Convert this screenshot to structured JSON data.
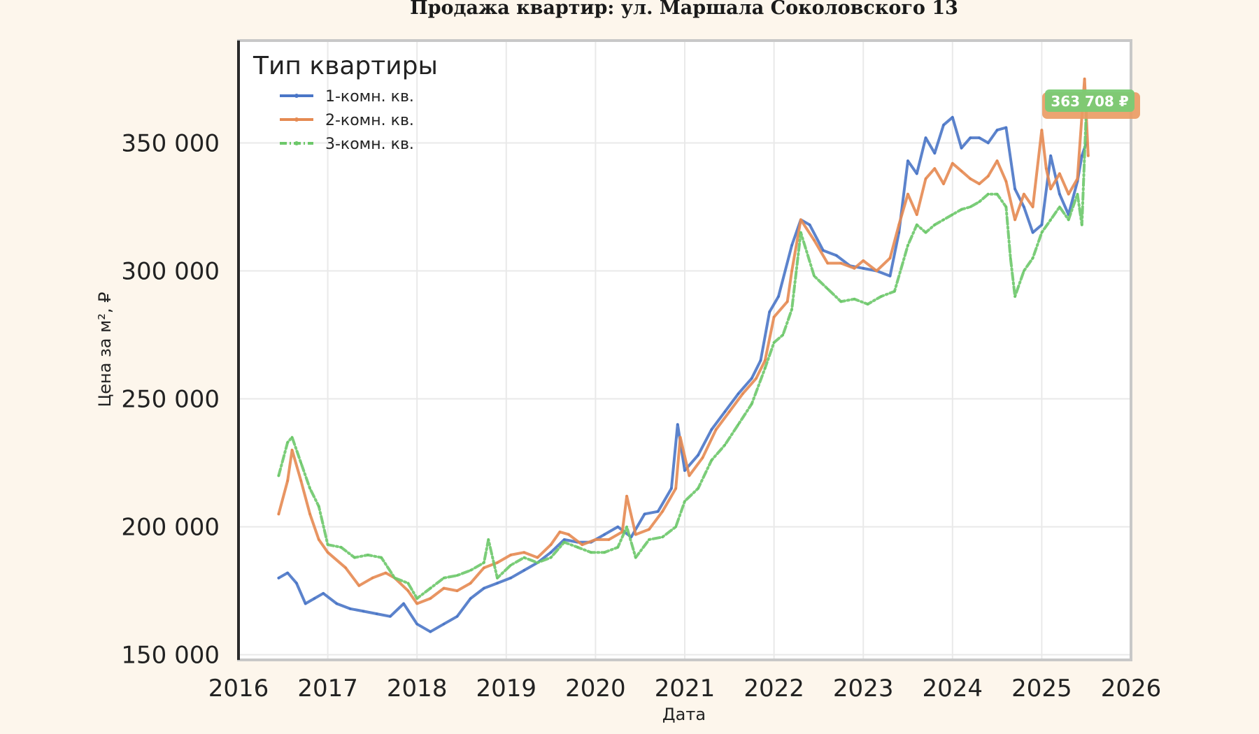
{
  "chart_data": {
    "type": "line",
    "title": "Продажа квартир: ул. Маршала Соколовского 13",
    "xlabel": "Дата",
    "ylabel": "Цена за м², ₽",
    "xlim": [
      2016,
      2026
    ],
    "ylim": [
      148000,
      390000
    ],
    "x_ticks": [
      "2016",
      "2017",
      "2018",
      "2019",
      "2020",
      "2021",
      "2022",
      "2023",
      "2024",
      "2025",
      "2026"
    ],
    "y_ticks": [
      {
        "value": 150000,
        "label": "150 000"
      },
      {
        "value": 200000,
        "label": "200 000"
      },
      {
        "value": 250000,
        "label": "250 000"
      },
      {
        "value": 300000,
        "label": "300 000"
      },
      {
        "value": 350000,
        "label": "350 000"
      }
    ],
    "grid": true,
    "legend": {
      "title": "Тип квартиры",
      "placement": "top-left"
    },
    "badge": {
      "text": "363 708 ₽"
    },
    "series": [
      {
        "name": "1-комн. кв.",
        "color": "#4a76c7",
        "x": [
          2016.45,
          2016.55,
          2016.65,
          2016.75,
          2016.85,
          2016.95,
          2017.1,
          2017.25,
          2017.4,
          2017.55,
          2017.7,
          2017.85,
          2018.0,
          2018.15,
          2018.3,
          2018.45,
          2018.6,
          2018.75,
          2018.9,
          2019.05,
          2019.2,
          2019.35,
          2019.5,
          2019.65,
          2019.8,
          2019.95,
          2020.1,
          2020.25,
          2020.4,
          2020.55,
          2020.7,
          2020.85,
          2020.92,
          2021.0,
          2021.15,
          2021.3,
          2021.45,
          2021.6,
          2021.75,
          2021.85,
          2021.95,
          2022.05,
          2022.2,
          2022.3,
          2022.4,
          2022.55,
          2022.7,
          2022.85,
          2023.0,
          2023.15,
          2023.3,
          2023.4,
          2023.5,
          2023.6,
          2023.7,
          2023.8,
          2023.9,
          2024.0,
          2024.1,
          2024.2,
          2024.3,
          2024.4,
          2024.5,
          2024.6,
          2024.7,
          2024.8,
          2024.9,
          2025.0,
          2025.1,
          2025.2,
          2025.3,
          2025.4,
          2025.45,
          2025.5
        ],
        "y": [
          180000,
          182000,
          178000,
          170000,
          172000,
          174000,
          170000,
          168000,
          167000,
          166000,
          165000,
          170000,
          162000,
          159000,
          162000,
          165000,
          172000,
          176000,
          178000,
          180000,
          183000,
          186000,
          190000,
          195000,
          194000,
          194000,
          197000,
          200000,
          196000,
          205000,
          206000,
          215000,
          240000,
          222000,
          228000,
          238000,
          245000,
          252000,
          258000,
          265000,
          284000,
          290000,
          310000,
          320000,
          318000,
          308000,
          306000,
          302000,
          301000,
          300000,
          298000,
          315000,
          343000,
          338000,
          352000,
          346000,
          357000,
          360000,
          348000,
          352000,
          352000,
          350000,
          355000,
          356000,
          332000,
          325000,
          315000,
          318000,
          345000,
          330000,
          322000,
          335000,
          345000,
          350000
        ]
      },
      {
        "name": "2-комн. кв.",
        "color": "#e58a52",
        "x": [
          2016.45,
          2016.55,
          2016.6,
          2016.7,
          2016.8,
          2016.9,
          2017.0,
          2017.2,
          2017.35,
          2017.5,
          2017.65,
          2017.75,
          2017.9,
          2018.0,
          2018.15,
          2018.3,
          2018.45,
          2018.6,
          2018.75,
          2018.9,
          2019.05,
          2019.2,
          2019.35,
          2019.5,
          2019.6,
          2019.7,
          2019.85,
          2020.0,
          2020.15,
          2020.3,
          2020.35,
          2020.45,
          2020.6,
          2020.75,
          2020.9,
          2020.95,
          2021.05,
          2021.2,
          2021.35,
          2021.5,
          2021.65,
          2021.8,
          2021.9,
          2022.0,
          2022.15,
          2022.2,
          2022.3,
          2022.45,
          2022.6,
          2022.75,
          2022.9,
          2023.0,
          2023.15,
          2023.3,
          2023.4,
          2023.5,
          2023.6,
          2023.7,
          2023.8,
          2023.9,
          2024.0,
          2024.1,
          2024.2,
          2024.3,
          2024.4,
          2024.5,
          2024.6,
          2024.7,
          2024.8,
          2024.9,
          2025.0,
          2025.05,
          2025.1,
          2025.2,
          2025.3,
          2025.4,
          2025.48,
          2025.52
        ],
        "y": [
          205000,
          218000,
          230000,
          218000,
          205000,
          195000,
          190000,
          184000,
          177000,
          180000,
          182000,
          180000,
          175000,
          170000,
          172000,
          176000,
          175000,
          178000,
          184000,
          186000,
          189000,
          190000,
          188000,
          193000,
          198000,
          197000,
          193000,
          195000,
          195000,
          198000,
          212000,
          197000,
          199000,
          206000,
          215000,
          235000,
          220000,
          227000,
          238000,
          245000,
          252000,
          258000,
          265000,
          282000,
          288000,
          300000,
          320000,
          312000,
          303000,
          303000,
          301000,
          304000,
          300000,
          305000,
          318000,
          330000,
          322000,
          336000,
          340000,
          334000,
          342000,
          339000,
          336000,
          334000,
          337000,
          343000,
          335000,
          320000,
          330000,
          325000,
          355000,
          340000,
          332000,
          338000,
          330000,
          336000,
          375000,
          345000
        ]
      },
      {
        "name": "3-комн. кв.",
        "color": "#6dc86a",
        "x": [
          2016.45,
          2016.55,
          2016.6,
          2016.7,
          2016.8,
          2016.9,
          2017.0,
          2017.15,
          2017.3,
          2017.45,
          2017.6,
          2017.75,
          2017.9,
          2018.0,
          2018.15,
          2018.3,
          2018.45,
          2018.6,
          2018.75,
          2018.8,
          2018.9,
          2019.05,
          2019.2,
          2019.35,
          2019.5,
          2019.65,
          2019.8,
          2019.95,
          2020.1,
          2020.25,
          2020.35,
          2020.45,
          2020.6,
          2020.75,
          2020.9,
          2021.0,
          2021.15,
          2021.3,
          2021.45,
          2021.6,
          2021.75,
          2021.9,
          2022.0,
          2022.1,
          2022.2,
          2022.3,
          2022.45,
          2022.6,
          2022.75,
          2022.9,
          2023.05,
          2023.2,
          2023.35,
          2023.5,
          2023.6,
          2023.7,
          2023.8,
          2023.9,
          2024.0,
          2024.1,
          2024.2,
          2024.3,
          2024.4,
          2024.5,
          2024.6,
          2024.65,
          2024.7,
          2024.8,
          2024.9,
          2025.0,
          2025.1,
          2025.2,
          2025.3,
          2025.4,
          2025.45,
          2025.5
        ],
        "y": [
          220000,
          233000,
          235000,
          225000,
          215000,
          208000,
          193000,
          192000,
          188000,
          189000,
          188000,
          180000,
          178000,
          172000,
          176000,
          180000,
          181000,
          183000,
          186000,
          195000,
          180000,
          185000,
          188000,
          186000,
          188000,
          194000,
          192000,
          190000,
          190000,
          192000,
          200000,
          188000,
          195000,
          196000,
          200000,
          210000,
          215000,
          226000,
          232000,
          240000,
          248000,
          262000,
          272000,
          275000,
          285000,
          315000,
          298000,
          293000,
          288000,
          289000,
          287000,
          290000,
          292000,
          310000,
          318000,
          315000,
          318000,
          320000,
          322000,
          324000,
          325000,
          327000,
          330000,
          330000,
          325000,
          305000,
          290000,
          300000,
          305000,
          315000,
          320000,
          325000,
          320000,
          330000,
          318000,
          363708
        ]
      }
    ]
  }
}
